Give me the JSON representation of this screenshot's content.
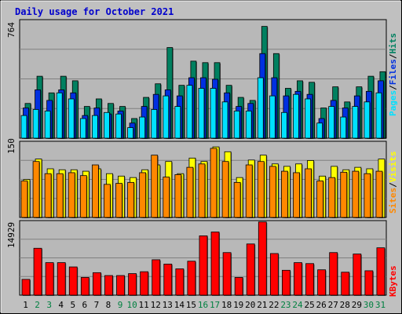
{
  "title": "Daily usage for October 2021",
  "colors": {
    "background": "#C0C0C0",
    "plot": "#B8B8B8",
    "grid": "#808080",
    "title": "#0000CC",
    "pages": "#00E0FF",
    "files": "#0030E0",
    "hits": "#008060",
    "visits": "#FFFF00",
    "sites": "#FF8800",
    "kbytes": "#FF0000",
    "weekday": "#000000",
    "weekend": "#008040",
    "slash": "#000000"
  },
  "legend": {
    "pages": "Pages",
    "files": "Files",
    "hits": "Hits",
    "slash": "/",
    "sites": "Sites",
    "visits": "Visits",
    "kbytes": "KBytes"
  },
  "chart_data": [
    {
      "type": "bar",
      "panel": "top",
      "ymax_label": "764",
      "ylim": [
        0,
        764
      ],
      "categories": [
        "1",
        "2",
        "3",
        "4",
        "5",
        "6",
        "7",
        "8",
        "9",
        "10",
        "11",
        "12",
        "13",
        "14",
        "15",
        "16",
        "17",
        "18",
        "19",
        "20",
        "21",
        "22",
        "23",
        "24",
        "25",
        "26",
        "27",
        "28",
        "29",
        "30",
        "31"
      ],
      "series": [
        {
          "name": "Hits",
          "values": [
            230,
            410,
            300,
            410,
            380,
            210,
            260,
            230,
            210,
            130,
            270,
            360,
            600,
            350,
            510,
            500,
            500,
            350,
            270,
            250,
            740,
            560,
            330,
            380,
            370,
            200,
            340,
            240,
            340,
            410,
            440
          ]
        },
        {
          "name": "Files",
          "values": [
            200,
            320,
            250,
            320,
            300,
            150,
            200,
            160,
            180,
            100,
            210,
            290,
            320,
            280,
            400,
            400,
            390,
            300,
            210,
            230,
            560,
            400,
            280,
            310,
            290,
            130,
            250,
            200,
            280,
            310,
            380
          ]
        },
        {
          "name": "Pages",
          "values": [
            150,
            190,
            180,
            300,
            260,
            130,
            150,
            170,
            160,
            70,
            140,
            190,
            280,
            210,
            350,
            330,
            330,
            240,
            180,
            180,
            400,
            280,
            170,
            290,
            260,
            100,
            210,
            140,
            210,
            240,
            300
          ]
        }
      ]
    },
    {
      "type": "bar",
      "panel": "middle",
      "ymax_label": "150",
      "ylim": [
        0,
        150
      ],
      "categories": [
        "1",
        "2",
        "3",
        "4",
        "5",
        "6",
        "7",
        "8",
        "9",
        "10",
        "11",
        "12",
        "13",
        "14",
        "15",
        "16",
        "17",
        "18",
        "19",
        "20",
        "21",
        "22",
        "23",
        "24",
        "25",
        "26",
        "27",
        "28",
        "29",
        "30",
        "31"
      ],
      "series": [
        {
          "name": "Visits",
          "values": [
            78,
            120,
            100,
            98,
            98,
            95,
            100,
            90,
            85,
            82,
            98,
            108,
            115,
            90,
            122,
            115,
            145,
            135,
            82,
            118,
            128,
            110,
            105,
            110,
            117,
            85,
            105,
            98,
            103,
            100,
            120
          ]
        },
        {
          "name": "Sites",
          "values": [
            75,
            115,
            90,
            90,
            92,
            86,
            108,
            68,
            70,
            72,
            92,
            128,
            83,
            88,
            103,
            110,
            142,
            115,
            72,
            108,
            115,
            105,
            95,
            92,
            100,
            75,
            82,
            93,
            95,
            90,
            95
          ]
        }
      ]
    },
    {
      "type": "bar",
      "panel": "bottom",
      "ymax_label": "14929",
      "ylim": [
        0,
        14929
      ],
      "categories": [
        "1",
        "2",
        "3",
        "4",
        "5",
        "6",
        "7",
        "8",
        "9",
        "10",
        "11",
        "12",
        "13",
        "14",
        "15",
        "16",
        "17",
        "18",
        "19",
        "20",
        "21",
        "22",
        "23",
        "24",
        "25",
        "26",
        "27",
        "28",
        "29",
        "30",
        "31"
      ],
      "series": [
        {
          "name": "KBytes",
          "values": [
            3300,
            9800,
            6800,
            6800,
            5900,
            3700,
            4700,
            4100,
            4100,
            4500,
            4900,
            7400,
            6500,
            5500,
            7100,
            12400,
            13200,
            8900,
            3700,
            10700,
            15300,
            8700,
            5200,
            6800,
            6600,
            5300,
            8900,
            4800,
            8600,
            5100,
            9900
          ]
        }
      ]
    }
  ],
  "days": [
    "1",
    "2",
    "3",
    "4",
    "5",
    "6",
    "7",
    "8",
    "9",
    "10",
    "11",
    "12",
    "13",
    "14",
    "15",
    "16",
    "17",
    "18",
    "19",
    "20",
    "21",
    "22",
    "23",
    "24",
    "25",
    "26",
    "27",
    "28",
    "29",
    "30",
    "31"
  ],
  "weekend_days": [
    "2",
    "3",
    "9",
    "10",
    "16",
    "17",
    "23",
    "24",
    "30",
    "31"
  ]
}
